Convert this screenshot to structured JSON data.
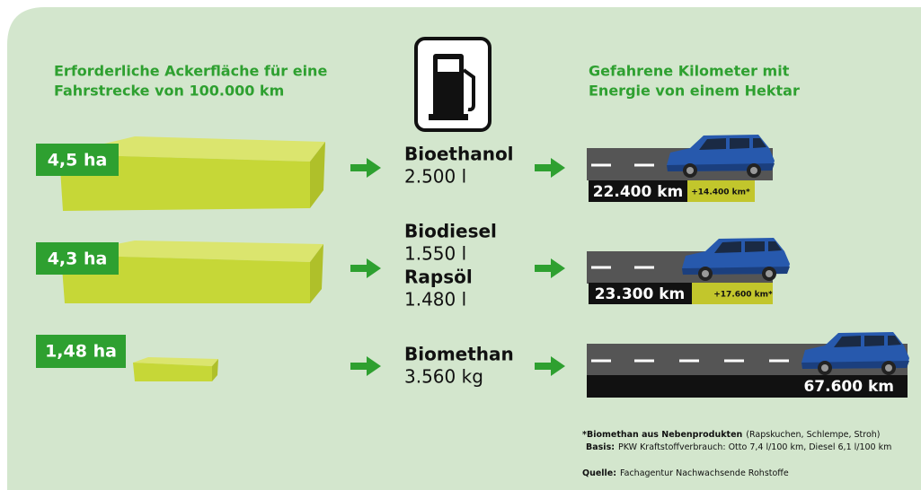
{
  "left_heading": [
    "Erforderliche Ackerfläche für eine",
    "Fahrstrecke von 100.000 km"
  ],
  "right_heading": [
    "Gefahrene Kilometer mit",
    "Energie von einem Hektar"
  ],
  "rows": [
    {
      "area": "4,5 ha",
      "fuels": [
        {
          "name": "Bioethanol",
          "amount": "2.500 l"
        }
      ],
      "distance": "22.400 km",
      "bonus": "+14.400 km*"
    },
    {
      "area": "4,3 ha",
      "fuels": [
        {
          "name": "Biodiesel",
          "amount": "1.550 l"
        },
        {
          "name": "Rapsöl",
          "amount": "1.480 l"
        }
      ],
      "distance": "23.300 km",
      "bonus": "+17.600 km*"
    },
    {
      "area": "1,48 ha",
      "fuels": [
        {
          "name": "Biomethan",
          "amount": "3.560 kg"
        }
      ],
      "distance": "67.600 km"
    }
  ],
  "footnotes": [
    {
      "label": "*Biomethan aus Nebenprodukten",
      "text": "(Rapskuchen, Schlempe, Stroh)"
    },
    {
      "label": "Basis:",
      "text": "PKW Kraftstoffverbrauch: Otto 7,4 l/100 km, Diesel 6,1 l/100 km"
    },
    {
      "label": "Quelle:",
      "text": "Fachagentur Nachwachsende Rohstoffe"
    }
  ]
}
